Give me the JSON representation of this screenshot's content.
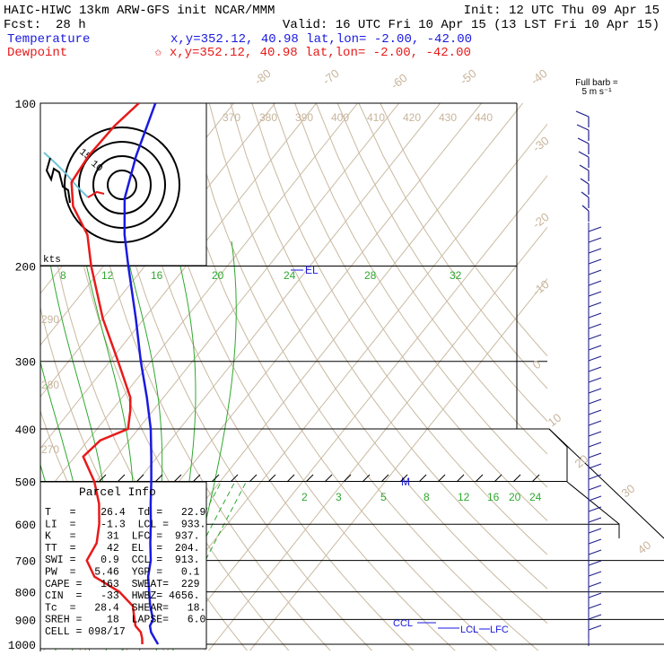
{
  "header": {
    "model_line": "HAIC-HIWC 13km ARW-GFS init   NCAR/MMM",
    "init_line": "Init: 12 UTC Thu 09 Apr 15",
    "fcst_label": "Fcst:",
    "fcst_value": "28 h",
    "valid_line": "Valid: 16 UTC Fri 10 Apr 15 (13 LST Fri 10 Apr 15)",
    "temperature_label": "Temperature",
    "temperature_loc": "x,y=352.12, 40.98    lat,lon= -2.00, -42.00",
    "dewpoint_label": "Dewpoint",
    "dewpoint_loc": "✩ x,y=352.12, 40.98    lat,lon= -2.00, -42.00"
  },
  "colors": {
    "temperature": "#1a1ae0",
    "dewpoint": "#e81a1a",
    "isotherm": "#c9b9a0",
    "theta_label": "#c7b49b",
    "mixing_ratio": "#2fa82f",
    "barb": "#1f1f8c",
    "hodo_trace": "#6ec3d8"
  },
  "full_barb_label": "Full barb =",
  "full_barb_value": "5 m s⁻¹",
  "hodo_kts_label": "kts",
  "hodo_ring_labels": [
    "15",
    "10"
  ],
  "parcel_info": {
    "title": "Parcel Info",
    "rows": [
      "T   =    26.4  Td =   22.9",
      "LI  =    -1.3  LCL =  933.",
      "K   =     31  LFC =  937.",
      "TT  =     42  EL  =  204.",
      "SWI =    0.9  CCL =  913.",
      "PW  =   5.46  YGP =   0.1",
      "CAPE =   163  SWEAT=  229",
      "CIN  =   -33  HWBZ= 4656.",
      "Tc  =   28.4  SHEAR=   18.",
      "SREH =    18  LAPSE=   6.0",
      "CELL = 098/17"
    ]
  },
  "level_markers": {
    "el": "EL",
    "m": "M",
    "ccl": "CCL",
    "lcl": "LCL",
    "lfc": "LFC"
  },
  "chart_data": {
    "type": "line",
    "title": "",
    "ylabel": "",
    "xlabel": "",
    "y_axis": "pressure (hPa), log scale, inverted",
    "ylim": [
      1000,
      100
    ],
    "pressure_ticks": [
      100,
      200,
      300,
      400,
      500,
      600,
      700,
      800,
      900,
      1000
    ],
    "isotherm_labels": [
      -80,
      -70,
      -60,
      -50,
      -40,
      -30,
      -20,
      -10,
      0,
      10,
      20,
      30,
      40
    ],
    "theta_labels": [
      370,
      380,
      390,
      400,
      410,
      420,
      430,
      440,
      290,
      280,
      270
    ],
    "mixing_ratio_labels_200": [
      8,
      12,
      16,
      20,
      24,
      28,
      32
    ],
    "mixing_ratio_labels_550": [
      2,
      3,
      5,
      8,
      12,
      16,
      20,
      24
    ],
    "series": [
      {
        "name": "Temperature",
        "points": [
          [
            1000,
            26.5
          ],
          [
            975,
            24.5
          ],
          [
            950,
            22.5
          ],
          [
            925,
            21.0
          ],
          [
            900,
            20.5
          ],
          [
            850,
            17.2
          ],
          [
            800,
            14.2
          ],
          [
            750,
            11.0
          ],
          [
            700,
            8.5
          ],
          [
            650,
            5.0
          ],
          [
            600,
            1.5
          ],
          [
            550,
            -2.5
          ],
          [
            500,
            -6.7
          ],
          [
            450,
            -11.5
          ],
          [
            400,
            -17.0
          ],
          [
            350,
            -24.0
          ],
          [
            300,
            -32.5
          ],
          [
            250,
            -42.0
          ],
          [
            200,
            -54.0
          ],
          [
            175,
            -61.0
          ],
          [
            150,
            -68.0
          ],
          [
            125,
            -73.5
          ],
          [
            100,
            -79.0
          ]
        ]
      },
      {
        "name": "Dewpoint",
        "points": [
          [
            1000,
            22.7
          ],
          [
            975,
            21.5
          ],
          [
            950,
            20.0
          ],
          [
            925,
            17.5
          ],
          [
            900,
            16.0
          ],
          [
            850,
            13.0
          ],
          [
            800,
            7.0
          ],
          [
            750,
            -2.0
          ],
          [
            700,
            -7.0
          ],
          [
            650,
            -8.0
          ],
          [
            600,
            -11.0
          ],
          [
            550,
            -15.0
          ],
          [
            500,
            -20.5
          ],
          [
            450,
            -28.0
          ],
          [
            420,
            -27.0
          ],
          [
            400,
            -22.5
          ],
          [
            370,
            -25.5
          ],
          [
            350,
            -28.0
          ],
          [
            300,
            -38.0
          ],
          [
            250,
            -50.0
          ],
          [
            200,
            -63.0
          ],
          [
            175,
            -70.0
          ],
          [
            155,
            -79.0
          ],
          [
            140,
            -84.0
          ],
          [
            125,
            -85.0
          ],
          [
            110,
            -84.5
          ],
          [
            100,
            -83.0
          ]
        ]
      }
    ]
  }
}
